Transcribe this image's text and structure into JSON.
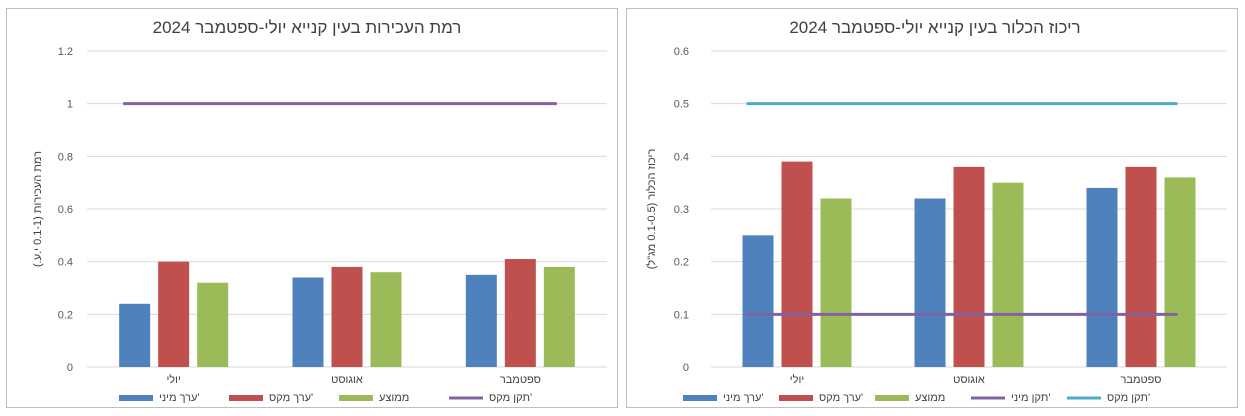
{
  "chart_data": [
    {
      "type": "bar",
      "title": "רמת העכירות בעין קנייא יולי-ספטמבר 2024",
      "ylabel": "רמת העכירות (0.1-1 י.ע.)",
      "xlabel": "",
      "categories": [
        "יולי",
        "אוגוסט",
        "ספטמבר"
      ],
      "ylim": [
        0,
        1.2
      ],
      "yticks": [
        0,
        0.2,
        0.4,
        0.6,
        0.8,
        1,
        1.2
      ],
      "ytick_labels": [
        "0",
        "0.2",
        "0.4",
        "0.6",
        "0.8",
        "1",
        "1.2"
      ],
      "grid": true,
      "legend_position": "bottom",
      "series": [
        {
          "name": "ערך מיני'",
          "color": "#4f81bd",
          "values": [
            0.24,
            0.34,
            0.35
          ]
        },
        {
          "name": "ערך מקס'",
          "color": "#c0504d",
          "values": [
            0.4,
            0.38,
            0.41
          ]
        },
        {
          "name": "ממוצע",
          "color": "#9bbb59",
          "values": [
            0.32,
            0.36,
            0.38
          ]
        }
      ],
      "lines": [
        {
          "name": "תקן מקס'",
          "color": "#8064a2",
          "value": 1
        }
      ]
    },
    {
      "type": "bar",
      "title": "ריכוז הכלור בעין קנייא יולי-ספטמבר 2024",
      "ylabel": "ריכוז הכלור (0.1-0.5 מג\"ל)",
      "xlabel": "",
      "categories": [
        "יולי",
        "אוגוסט",
        "ספטמבר"
      ],
      "ylim": [
        0,
        0.6
      ],
      "yticks": [
        0,
        0.1,
        0.2,
        0.3,
        0.4,
        0.5,
        0.6
      ],
      "ytick_labels": [
        "0",
        "0.1",
        "0.2",
        "0.3",
        "0.4",
        "0.5",
        "0.6"
      ],
      "grid": true,
      "legend_position": "bottom",
      "series": [
        {
          "name": "ערך מיני'",
          "color": "#4f81bd",
          "values": [
            0.25,
            0.32,
            0.34
          ]
        },
        {
          "name": "ערך מקס'",
          "color": "#c0504d",
          "values": [
            0.39,
            0.38,
            0.38
          ]
        },
        {
          "name": "ממוצע",
          "color": "#9bbb59",
          "values": [
            0.32,
            0.35,
            0.36
          ]
        }
      ],
      "lines": [
        {
          "name": "תקן מיני'",
          "color": "#8064a2",
          "value": 0.1
        },
        {
          "name": "תקן מקס'",
          "color": "#4bacc6",
          "value": 0.5
        }
      ]
    }
  ]
}
